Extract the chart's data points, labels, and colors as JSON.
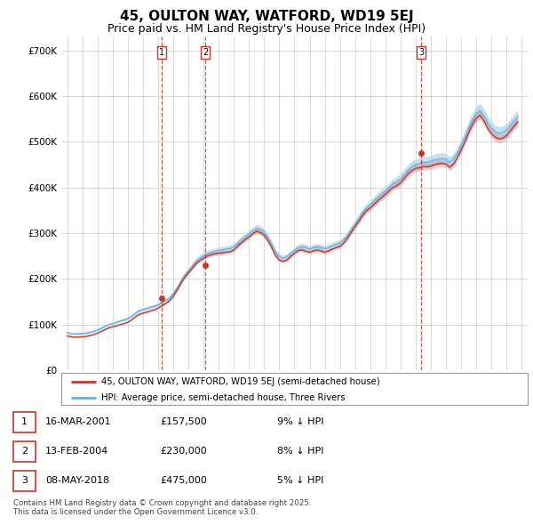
{
  "title": "45, OULTON WAY, WATFORD, WD19 5EJ",
  "subtitle": "Price paid vs. HM Land Registry's House Price Index (HPI)",
  "ylabel_ticks": [
    "£0",
    "£100K",
    "£200K",
    "£300K",
    "£400K",
    "£500K",
    "£600K",
    "£700K"
  ],
  "ytick_values": [
    0,
    100000,
    200000,
    300000,
    400000,
    500000,
    600000,
    700000
  ],
  "ylim": [
    0,
    730000
  ],
  "legend_line1": "45, OULTON WAY, WATFORD, WD19 5EJ (semi-detached house)",
  "legend_line2": "HPI: Average price, semi-detached house, Three Rivers",
  "sale_labels": [
    "1",
    "2",
    "3"
  ],
  "sale_dates": [
    "16-MAR-2001",
    "13-FEB-2004",
    "08-MAY-2018"
  ],
  "sale_prices": [
    157500,
    230000,
    475000
  ],
  "sale_hpi_diff": [
    "9% ↓ HPI",
    "8% ↓ HPI",
    "5% ↓ HPI"
  ],
  "sale_prices_str": [
    "£157,500",
    "£230,000",
    "£475,000"
  ],
  "sale_years": [
    2001.21,
    2004.12,
    2018.36
  ],
  "footer": "Contains HM Land Registry data © Crown copyright and database right 2025.\nThis data is licensed under the Open Government Licence v3.0.",
  "hpi_color": "#6baed6",
  "hpi_fill_color": "#bdd7ee",
  "price_color": "#c0392b",
  "vline_color": "#c0392b",
  "background_color": "#ffffff",
  "grid_color": "#cccccc",
  "title_fontsize": 11,
  "subtitle_fontsize": 9,
  "hpi_data": {
    "years": [
      1995.0,
      1995.25,
      1995.5,
      1995.75,
      1996.0,
      1996.25,
      1996.5,
      1996.75,
      1997.0,
      1997.25,
      1997.5,
      1997.75,
      1998.0,
      1998.25,
      1998.5,
      1998.75,
      1999.0,
      1999.25,
      1999.5,
      1999.75,
      2000.0,
      2000.25,
      2000.5,
      2000.75,
      2001.0,
      2001.25,
      2001.5,
      2001.75,
      2002.0,
      2002.25,
      2002.5,
      2002.75,
      2003.0,
      2003.25,
      2003.5,
      2003.75,
      2004.0,
      2004.25,
      2004.5,
      2004.75,
      2005.0,
      2005.25,
      2005.5,
      2005.75,
      2006.0,
      2006.25,
      2006.5,
      2006.75,
      2007.0,
      2007.25,
      2007.5,
      2007.75,
      2008.0,
      2008.25,
      2008.5,
      2008.75,
      2009.0,
      2009.25,
      2009.5,
      2009.75,
      2010.0,
      2010.25,
      2010.5,
      2010.75,
      2011.0,
      2011.25,
      2011.5,
      2011.75,
      2012.0,
      2012.25,
      2012.5,
      2012.75,
      2013.0,
      2013.25,
      2013.5,
      2013.75,
      2014.0,
      2014.25,
      2014.5,
      2014.75,
      2015.0,
      2015.25,
      2015.5,
      2015.75,
      2016.0,
      2016.25,
      2016.5,
      2016.75,
      2017.0,
      2017.25,
      2017.5,
      2017.75,
      2018.0,
      2018.25,
      2018.5,
      2018.75,
      2019.0,
      2019.25,
      2019.5,
      2019.75,
      2020.0,
      2020.25,
      2020.5,
      2020.75,
      2021.0,
      2021.25,
      2021.5,
      2021.75,
      2022.0,
      2022.25,
      2022.5,
      2022.75,
      2023.0,
      2023.25,
      2023.5,
      2023.75,
      2024.0,
      2024.25,
      2024.5,
      2024.75
    ],
    "values": [
      82000,
      80000,
      79000,
      79500,
      80000,
      81000,
      83000,
      85000,
      88000,
      92000,
      96000,
      100000,
      102000,
      105000,
      108000,
      110000,
      113000,
      118000,
      125000,
      130000,
      133000,
      135000,
      138000,
      140000,
      143000,
      148000,
      153000,
      158000,
      168000,
      180000,
      195000,
      208000,
      218000,
      228000,
      238000,
      245000,
      250000,
      255000,
      258000,
      260000,
      262000,
      263000,
      265000,
      266000,
      270000,
      278000,
      285000,
      292000,
      298000,
      305000,
      310000,
      308000,
      302000,
      290000,
      275000,
      258000,
      248000,
      245000,
      248000,
      255000,
      262000,
      268000,
      270000,
      268000,
      265000,
      268000,
      270000,
      268000,
      266000,
      268000,
      272000,
      275000,
      278000,
      285000,
      295000,
      308000,
      320000,
      332000,
      345000,
      355000,
      362000,
      370000,
      378000,
      385000,
      392000,
      400000,
      408000,
      412000,
      418000,
      428000,
      438000,
      445000,
      450000,
      452000,
      455000,
      455000,
      457000,
      460000,
      462000,
      463000,
      462000,
      455000,
      462000,
      475000,
      492000,
      510000,
      530000,
      548000,
      562000,
      568000,
      558000,
      542000,
      530000,
      522000,
      518000,
      520000,
      525000,
      535000,
      545000,
      555000
    ]
  },
  "price_data": {
    "years": [
      1995.0,
      1995.25,
      1995.5,
      1995.75,
      1996.0,
      1996.25,
      1996.5,
      1996.75,
      1997.0,
      1997.25,
      1997.5,
      1997.75,
      1998.0,
      1998.25,
      1998.5,
      1998.75,
      1999.0,
      1999.25,
      1999.5,
      1999.75,
      2000.0,
      2000.25,
      2000.5,
      2000.75,
      2001.0,
      2001.25,
      2001.5,
      2001.75,
      2002.0,
      2002.25,
      2002.5,
      2002.75,
      2003.0,
      2003.25,
      2003.5,
      2003.75,
      2004.0,
      2004.25,
      2004.5,
      2004.75,
      2005.0,
      2005.25,
      2005.5,
      2005.75,
      2006.0,
      2006.25,
      2006.5,
      2006.75,
      2007.0,
      2007.25,
      2007.5,
      2007.75,
      2008.0,
      2008.25,
      2008.5,
      2008.75,
      2009.0,
      2009.25,
      2009.5,
      2009.75,
      2010.0,
      2010.25,
      2010.5,
      2010.75,
      2011.0,
      2011.25,
      2011.5,
      2011.75,
      2012.0,
      2012.25,
      2012.5,
      2012.75,
      2013.0,
      2013.25,
      2013.5,
      2013.75,
      2014.0,
      2014.25,
      2014.5,
      2014.75,
      2015.0,
      2015.25,
      2015.5,
      2015.75,
      2016.0,
      2016.25,
      2016.5,
      2016.75,
      2017.0,
      2017.25,
      2017.5,
      2017.75,
      2018.0,
      2018.25,
      2018.5,
      2018.75,
      2019.0,
      2019.25,
      2019.5,
      2019.75,
      2020.0,
      2020.25,
      2020.5,
      2020.75,
      2021.0,
      2021.25,
      2021.5,
      2021.75,
      2022.0,
      2022.25,
      2022.5,
      2022.75,
      2023.0,
      2023.25,
      2023.5,
      2023.75,
      2024.0,
      2024.25,
      2024.5,
      2024.75
    ],
    "values": [
      75000,
      73000,
      72000,
      72500,
      73000,
      74000,
      76000,
      78000,
      81000,
      85000,
      89000,
      93000,
      95000,
      97000,
      100000,
      102000,
      105000,
      110000,
      117000,
      122000,
      125000,
      127000,
      130000,
      132000,
      136000,
      141000,
      146000,
      152000,
      162000,
      175000,
      190000,
      203000,
      213000,
      223000,
      233000,
      240000,
      245000,
      250000,
      253000,
      255000,
      256000,
      257000,
      258000,
      259000,
      263000,
      272000,
      279000,
      286000,
      292000,
      299000,
      304000,
      301000,
      295000,
      283000,
      268000,
      250000,
      241000,
      238000,
      241000,
      249000,
      256000,
      262000,
      263000,
      260000,
      258000,
      261000,
      263000,
      261000,
      258000,
      261000,
      265000,
      268000,
      271000,
      278000,
      289000,
      302000,
      314000,
      326000,
      339000,
      349000,
      355000,
      363000,
      371000,
      378000,
      385000,
      393000,
      400000,
      404000,
      410000,
      420000,
      430000,
      437000,
      442000,
      443000,
      446000,
      445000,
      447000,
      450000,
      452000,
      453000,
      451000,
      444000,
      451000,
      465000,
      482000,
      500000,
      520000,
      538000,
      552000,
      558000,
      547000,
      530000,
      518000,
      510000,
      506000,
      508000,
      513000,
      524000,
      534000,
      544000
    ]
  }
}
